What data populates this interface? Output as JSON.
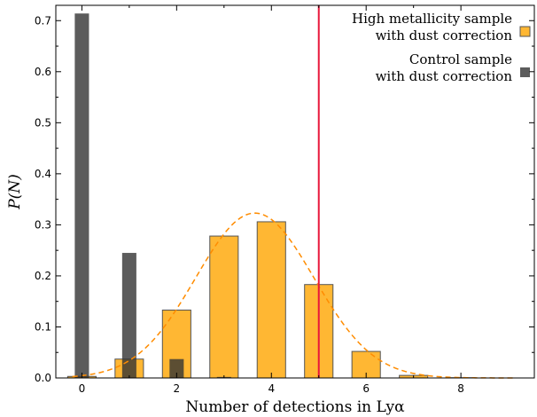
{
  "chart_data": {
    "type": "bar",
    "xlabel": "Number of detections in Lyα",
    "ylabel": "P(N)",
    "xlim": [
      -0.55,
      9.55
    ],
    "ylim": [
      0.0,
      0.73
    ],
    "xticks": [
      0,
      2,
      4,
      6,
      8
    ],
    "xtick_labels": [
      "0",
      "2",
      "4",
      "6",
      "8"
    ],
    "yticks": [
      0.0,
      0.1,
      0.2,
      0.3,
      0.4,
      0.5,
      0.6,
      0.7
    ],
    "ytick_labels": [
      "0.0",
      "0.1",
      "0.2",
      "0.3",
      "0.4",
      "0.5",
      "0.6",
      "0.7"
    ],
    "grid": false,
    "legend_position": "top-right",
    "series": [
      {
        "name": "High metallicity sample\nwith dust correction",
        "legend_lines": [
          "High metallicity sample",
          "with dust correction"
        ],
        "color": "#ffb733",
        "edge_color": "#555555",
        "x": [
          0,
          1,
          2,
          3,
          4,
          5,
          6,
          7,
          8,
          9
        ],
        "values": [
          0.003,
          0.037,
          0.133,
          0.278,
          0.306,
          0.183,
          0.052,
          0.005,
          0.0005,
          0.0
        ]
      },
      {
        "name": "Control sample\nwith dust correction",
        "legend_lines": [
          "Control sample",
          "with dust correction"
        ],
        "color": "#333333",
        "opacity": 0.8,
        "x": [
          0,
          1,
          2,
          3
        ],
        "values": [
          0.714,
          0.245,
          0.037,
          0.002
        ]
      }
    ],
    "gaussian_fit": {
      "color": "#ff8c00",
      "style": "dashed",
      "mean": 3.65,
      "sigma": 1.25,
      "amplitude": 0.323
    },
    "reference_line": {
      "x": 5.0,
      "color": "#e8173a"
    }
  }
}
